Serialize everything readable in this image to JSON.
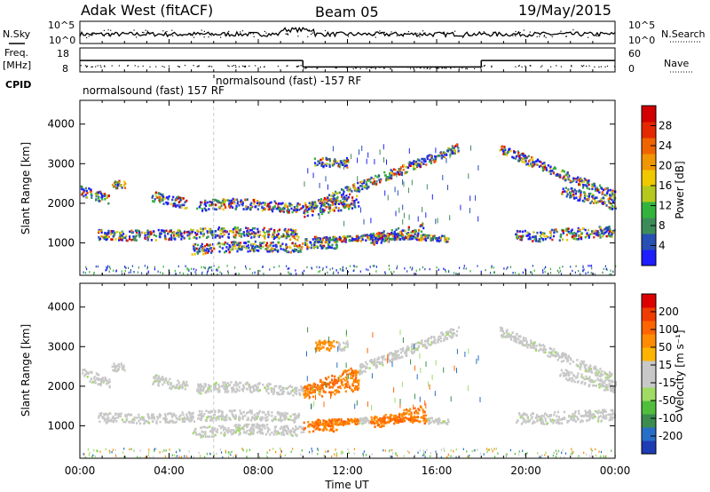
{
  "header": {
    "station": "Adak West (fitACF)",
    "beam": "Beam 05",
    "date": "19/May/2015"
  },
  "chart_data": [
    {
      "type": "line",
      "panel": "noise",
      "left_label": "N.Sky",
      "right_label": "N.Search",
      "left_ticks": [
        "10^5",
        "10^0"
      ],
      "right_ticks": [
        "10^5",
        "10^0"
      ],
      "note": "sky noise (solid) and search noise (dotted), log scale"
    },
    {
      "type": "line",
      "panel": "frequency",
      "left_label": "Freq. [MHz]",
      "left_ticks": [
        "18",
        "8"
      ],
      "right_label": "Nave",
      "right_ticks": [
        "60",
        "0"
      ],
      "freq_segments": [
        {
          "x": [
            0,
            10
          ],
          "y": 13.3
        },
        {
          "x": [
            10,
            18
          ],
          "y": 10.3
        },
        {
          "x": [
            18,
            24
          ],
          "y": 13.3
        }
      ],
      "cpid_label": "CPID",
      "cpid_segments": [
        {
          "text": "normalsound (fast) 157 RF"
        },
        {
          "text": "normalsound (fast) -157 RF"
        }
      ]
    },
    {
      "type": "heatmap",
      "panel": "power",
      "ylabel": "Slant Range [km]",
      "xlim": [
        0,
        24
      ],
      "ylim": [
        180,
        4600
      ],
      "y_ticks": [
        "1000",
        "2000",
        "3000",
        "4000"
      ],
      "colorbar": {
        "label": "Power [dB]",
        "ticks": [
          "4",
          "8",
          "12",
          "16",
          "20",
          "24",
          "28"
        ],
        "colors": [
          "#1e1eff",
          "#2850b4",
          "#3c8c5a",
          "#32b43c",
          "#b4c81e",
          "#f0c800",
          "#f09600",
          "#f06400",
          "#e62800",
          "#d20000"
        ]
      }
    },
    {
      "type": "heatmap",
      "panel": "velocity",
      "ylabel": "Slant Range [km]",
      "xlabel": "Time UT",
      "xlim": [
        0,
        24
      ],
      "ylim": [
        180,
        4600
      ],
      "y_ticks": [
        "1000",
        "2000",
        "3000",
        "4000"
      ],
      "x_ticks": [
        "00:00",
        "04:00",
        "08:00",
        "12:00",
        "16:00",
        "20:00",
        "00:00"
      ],
      "colorbar": {
        "label": "Velocity [m s⁻¹]",
        "ticks": [
          "200",
          "100",
          "50",
          "15",
          "-15",
          "-50",
          "-100",
          "-200"
        ],
        "colors": [
          "#1e3cb4",
          "#286ec8",
          "#3c8c50",
          "#50be3c",
          "#a0dc64",
          "#c8c8c8",
          "#c8c8c8",
          "#ffb400",
          "#ff8c00",
          "#ff6400",
          "#f03c00",
          "#dc0000"
        ]
      }
    }
  ]
}
